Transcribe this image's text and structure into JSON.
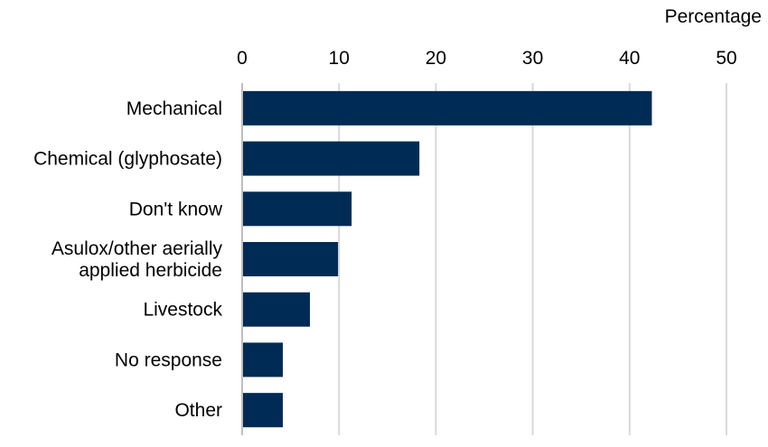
{
  "chart_data": {
    "type": "bar",
    "orientation": "horizontal",
    "xlabel": "Percentage",
    "ylabel": "",
    "xlim": [
      0,
      50
    ],
    "ticks": [
      "0",
      "10",
      "20",
      "30",
      "40",
      "50"
    ],
    "tick_values": [
      0,
      10,
      20,
      30,
      40,
      50
    ],
    "axis_position": "top",
    "grid": true,
    "bar_color": "#002b54",
    "grid_color": "#d9d9d9",
    "categories": [
      [
        "Mechanical"
      ],
      [
        "Chemical (glyphosate)"
      ],
      [
        "Don't know"
      ],
      [
        "Asulox/other aerially",
        "applied herbicide"
      ],
      [
        "Livestock"
      ],
      [
        "No response"
      ],
      [
        "Other"
      ]
    ],
    "values": [
      42.3,
      18.3,
      11.3,
      9.9,
      7.0,
      4.2,
      4.2
    ]
  }
}
